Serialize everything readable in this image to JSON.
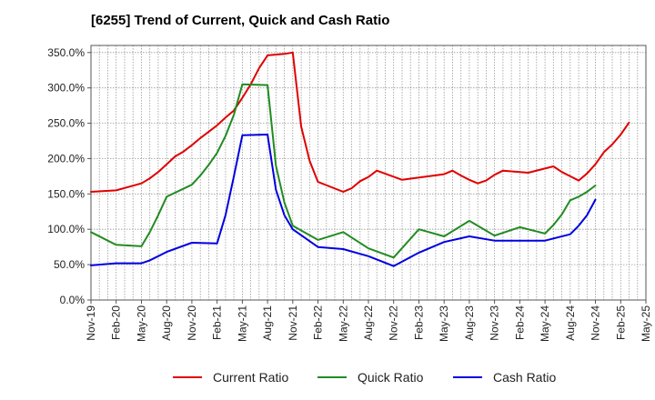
{
  "chart_data": {
    "type": "line",
    "title": "[6255]  Trend of Current, Quick and Cash Ratio",
    "xlabel": "",
    "ylabel": "",
    "ylim": [
      0,
      360
    ],
    "y_ticks": [
      0,
      50,
      100,
      150,
      200,
      250,
      300,
      350
    ],
    "y_tick_labels": [
      "0.0%",
      "50.0%",
      "100.0%",
      "150.0%",
      "200.0%",
      "250.0%",
      "300.0%",
      "350.0%"
    ],
    "x_tick_labels": [
      "Nov-19",
      "Feb-20",
      "May-20",
      "Aug-20",
      "Nov-20",
      "Feb-21",
      "May-21",
      "Aug-21",
      "Nov-21",
      "Feb-22",
      "May-22",
      "Aug-22",
      "Nov-22",
      "Feb-23",
      "May-23",
      "Aug-23",
      "Nov-23",
      "Feb-24",
      "May-24",
      "Aug-24",
      "Nov-24",
      "Feb-25",
      "May-25"
    ],
    "n_months": 67,
    "grid": true,
    "legend_position": "bottom",
    "series": [
      {
        "name": "Current Ratio",
        "color": "#e00000",
        "points": [
          [
            0,
            153
          ],
          [
            3,
            155
          ],
          [
            6,
            165
          ],
          [
            7,
            172
          ],
          [
            8,
            181
          ],
          [
            9,
            192
          ],
          [
            10,
            203
          ],
          [
            11,
            210
          ],
          [
            12,
            219
          ],
          [
            13,
            229
          ],
          [
            14,
            238
          ],
          [
            15,
            247
          ],
          [
            16,
            258
          ],
          [
            17,
            268
          ],
          [
            18,
            286
          ],
          [
            19,
            305
          ],
          [
            20,
            328
          ],
          [
            21,
            346
          ],
          [
            23,
            348
          ],
          [
            24,
            350
          ],
          [
            25,
            245
          ],
          [
            26,
            197
          ],
          [
            27,
            167
          ],
          [
            30,
            153
          ],
          [
            31,
            158
          ],
          [
            32,
            168
          ],
          [
            33,
            174
          ],
          [
            34,
            183
          ],
          [
            37,
            170
          ],
          [
            42,
            178
          ],
          [
            43,
            183
          ],
          [
            44,
            176
          ],
          [
            45,
            170
          ],
          [
            46,
            165
          ],
          [
            47,
            169
          ],
          [
            48,
            177
          ],
          [
            49,
            183
          ],
          [
            52,
            180
          ],
          [
            55,
            189
          ],
          [
            56,
            181
          ],
          [
            57,
            175
          ],
          [
            58,
            169
          ],
          [
            59,
            179
          ],
          [
            60,
            192
          ],
          [
            61,
            209
          ],
          [
            62,
            220
          ],
          [
            63,
            234
          ],
          [
            64,
            251
          ]
        ]
      },
      {
        "name": "Quick Ratio",
        "color": "#228b22",
        "points": [
          [
            0,
            96
          ],
          [
            3,
            78
          ],
          [
            6,
            76
          ],
          [
            7,
            96
          ],
          [
            8,
            120
          ],
          [
            9,
            146
          ],
          [
            12,
            163
          ],
          [
            13,
            176
          ],
          [
            14,
            191
          ],
          [
            15,
            208
          ],
          [
            16,
            232
          ],
          [
            17,
            262
          ],
          [
            18,
            305
          ],
          [
            21,
            304
          ],
          [
            22,
            190
          ],
          [
            23,
            138
          ],
          [
            24,
            105
          ],
          [
            27,
            85
          ],
          [
            30,
            96
          ],
          [
            33,
            73
          ],
          [
            36,
            60
          ],
          [
            39,
            100
          ],
          [
            42,
            90
          ],
          [
            45,
            112
          ],
          [
            48,
            91
          ],
          [
            51,
            103
          ],
          [
            54,
            94
          ],
          [
            55,
            106
          ],
          [
            56,
            121
          ],
          [
            57,
            141
          ],
          [
            58,
            146
          ],
          [
            59,
            153
          ],
          [
            60,
            162
          ]
        ]
      },
      {
        "name": "Cash Ratio",
        "color": "#0000e0",
        "points": [
          [
            0,
            49
          ],
          [
            3,
            52
          ],
          [
            6,
            52
          ],
          [
            7,
            56
          ],
          [
            8,
            62
          ],
          [
            9,
            68
          ],
          [
            12,
            81
          ],
          [
            15,
            80
          ],
          [
            16,
            120
          ],
          [
            17,
            175
          ],
          [
            18,
            233
          ],
          [
            21,
            234
          ],
          [
            22,
            156
          ],
          [
            23,
            120
          ],
          [
            24,
            100
          ],
          [
            27,
            75
          ],
          [
            30,
            72
          ],
          [
            33,
            62
          ],
          [
            36,
            48
          ],
          [
            39,
            67
          ],
          [
            42,
            82
          ],
          [
            45,
            90
          ],
          [
            48,
            84
          ],
          [
            51,
            84
          ],
          [
            54,
            84
          ],
          [
            57,
            93
          ],
          [
            58,
            105
          ],
          [
            59,
            120
          ],
          [
            60,
            142
          ]
        ]
      }
    ]
  }
}
